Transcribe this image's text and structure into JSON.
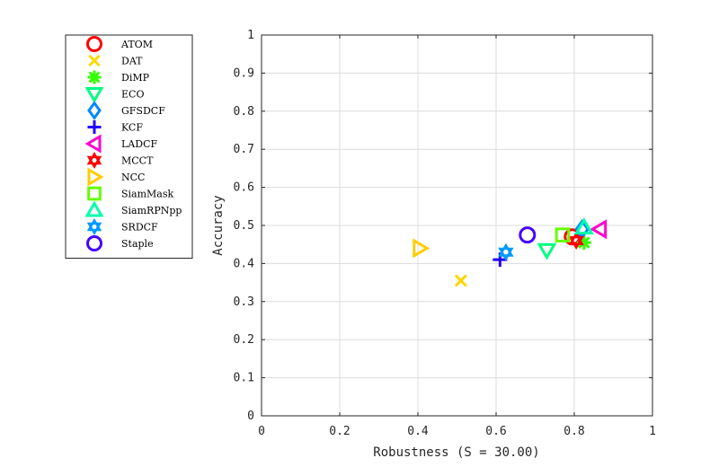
{
  "chart_data": {
    "type": "scatter",
    "xlabel": "Robustness (S = 30.00)",
    "ylabel": "Accuracy",
    "xlim": [
      0,
      1
    ],
    "ylim": [
      0,
      1
    ],
    "x_ticks": [
      "0",
      "0.2",
      "0.4",
      "0.6",
      "0.8",
      "1"
    ],
    "y_ticks": [
      "0",
      "0.1",
      "0.2",
      "0.3",
      "0.4",
      "0.5",
      "0.6",
      "0.7",
      "0.8",
      "0.9",
      "1"
    ],
    "grid": true,
    "legend_position": "outside-left",
    "series": [
      {
        "name": "ATOM",
        "marker": "circle",
        "color": "#ff0000",
        "x": 0.795,
        "y": 0.47
      },
      {
        "name": "DAT",
        "marker": "x",
        "color": "#ffd700",
        "x": 0.51,
        "y": 0.355
      },
      {
        "name": "DiMP",
        "marker": "asterisk",
        "color": "#33ff00",
        "x": 0.825,
        "y": 0.455
      },
      {
        "name": "ECO",
        "marker": "triangle-down",
        "color": "#00ff80",
        "x": 0.73,
        "y": 0.435
      },
      {
        "name": "GFSDCF",
        "marker": "diamond",
        "color": "#0088ff",
        "x": 0.82,
        "y": 0.49
      },
      {
        "name": "KCF",
        "marker": "plus",
        "color": "#2200ff",
        "x": 0.61,
        "y": 0.41
      },
      {
        "name": "LADCF",
        "marker": "triangle-left",
        "color": "#ff00cc",
        "x": 0.865,
        "y": 0.49
      },
      {
        "name": "MCCT",
        "marker": "hexagram",
        "color": "#ff0000",
        "x": 0.805,
        "y": 0.46
      },
      {
        "name": "NCC",
        "marker": "triangle-right",
        "color": "#ffcc00",
        "x": 0.405,
        "y": 0.44
      },
      {
        "name": "SiamMask",
        "marker": "square",
        "color": "#66ff00",
        "x": 0.77,
        "y": 0.475
      },
      {
        "name": "SiamRPNpp",
        "marker": "triangle-up",
        "color": "#00ffaa",
        "x": 0.825,
        "y": 0.495
      },
      {
        "name": "SRDCF",
        "marker": "hexagram",
        "color": "#0099ff",
        "x": 0.625,
        "y": 0.43
      },
      {
        "name": "Staple",
        "marker": "circle",
        "color": "#4400ff",
        "x": 0.68,
        "y": 0.475
      }
    ]
  }
}
